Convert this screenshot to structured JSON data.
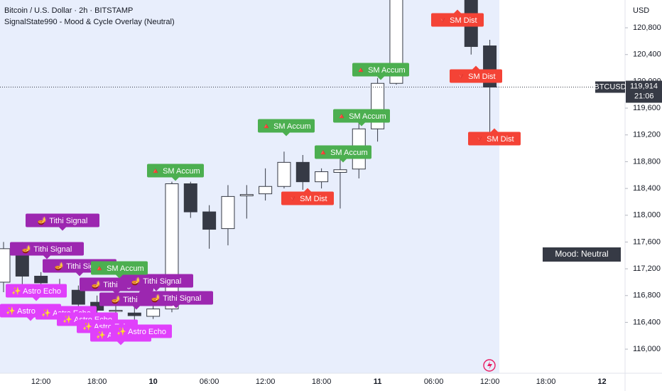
{
  "chart_data": {
    "type": "candlestick",
    "title": "Bitcoin / U.S. Dollar · 2h · BITSTAMP",
    "subtitle": "SignalState990 - Mood & Cycle Overlay (Neutral)",
    "currency": "USD",
    "symbol": "BTCUSD",
    "last_price": {
      "value": 119914,
      "label": "119,914"
    },
    "countdown": "21:06",
    "mood": "Mood: Neutral",
    "categories": [
      null,
      null,
      "12:00",
      null,
      null,
      "18:00",
      null,
      null,
      "10",
      null,
      null,
      "06:00",
      null,
      null,
      "12:00",
      null,
      null,
      "18:00",
      null,
      null,
      "11",
      null,
      null,
      "06:00",
      null,
      null,
      "12:00",
      null,
      null,
      "18:00",
      null,
      null,
      "12"
    ],
    "open": [
      117000,
      117520,
      117090,
      116950,
      116880,
      116700,
      116570,
      116540,
      116490,
      116600,
      118470,
      118050,
      117800,
      118290,
      118320,
      118430,
      118790,
      118500,
      118640,
      118690,
      119290,
      119970,
      null,
      null,
      null,
      121250,
      120530,
      null,
      null,
      null,
      null,
      null,
      null
    ],
    "high": [
      117600,
      117600,
      117150,
      117050,
      116950,
      116800,
      116700,
      116650,
      116700,
      118500,
      118500,
      118150,
      118450,
      118450,
      118700,
      118950,
      118900,
      118700,
      118850,
      119400,
      120050,
      121250,
      null,
      null,
      null,
      121300,
      120620,
      null,
      null,
      null,
      null,
      null,
      null
    ],
    "low": [
      116850,
      116900,
      116900,
      116800,
      116550,
      116500,
      116450,
      116400,
      116450,
      116550,
      117960,
      117500,
      117550,
      117950,
      118220,
      118400,
      118380,
      118400,
      118100,
      118550,
      119100,
      119950,
      null,
      null,
      null,
      120400,
      119220,
      null,
      null,
      null,
      null,
      null,
      null
    ],
    "close": [
      117500,
      117090,
      116990,
      116930,
      116670,
      116580,
      116580,
      116500,
      116600,
      118470,
      118050,
      117790,
      118280,
      118310,
      118430,
      118790,
      118500,
      118650,
      118680,
      119290,
      119970,
      121250,
      null,
      null,
      null,
      120520,
      119914,
      null,
      null,
      null,
      null,
      null,
      null
    ],
    "up_color": "#ffffff",
    "down_color": "#363a45",
    "border_color": "#363a45",
    "ylim": [
      115640,
      121215
    ],
    "yticks": [
      {
        "value": 116000,
        "label": "116,000"
      },
      {
        "value": 116400,
        "label": "116,400"
      },
      {
        "value": 116800,
        "label": "116,800"
      },
      {
        "value": 117200,
        "label": "117,200"
      },
      {
        "value": 117600,
        "label": "117,600"
      },
      {
        "value": 118000,
        "label": "118,000"
      },
      {
        "value": 118400,
        "label": "118,400"
      },
      {
        "value": 118800,
        "label": "118,800"
      },
      {
        "value": 119200,
        "label": "119,200"
      },
      {
        "value": 119600,
        "label": "119,600"
      },
      {
        "value": 120000,
        "label": "120,000"
      },
      {
        "value": 120400,
        "label": "120,400"
      },
      {
        "value": 120800,
        "label": "120,800"
      }
    ],
    "annotations": [
      {
        "text": "🪔 Tithi Signal",
        "color": "#9c27b0"
      },
      {
        "text": "🪔 Tithi Signal",
        "color": "#9c27b0"
      },
      {
        "text": "🪔 Tithi Signal",
        "color": "#9c27b0"
      },
      {
        "text": "🪔 Tithi Signal",
        "color": "#9c27b0"
      },
      {
        "text": "🪔 Tithi Signal",
        "color": "#9c27b0"
      },
      {
        "text": "🪔 Tithi Signal",
        "color": "#9c27b0"
      },
      {
        "text": "🪔 Tithi Signal",
        "color": "#9c27b0"
      },
      {
        "text": "✨ Astro Echo",
        "color": "#e040fb"
      },
      {
        "text": "✨ Astro Echo",
        "color": "#e040fb"
      },
      {
        "text": "✨ Astro Echo",
        "color": "#e040fb"
      },
      {
        "text": "✨ Astro Echo",
        "color": "#e040fb"
      },
      {
        "text": "✨ Astro Echo",
        "color": "#e040fb"
      },
      {
        "text": "✨ Astro Echo",
        "color": "#e040fb"
      },
      {
        "text": "✨ Astro Echo",
        "color": "#e040fb"
      },
      {
        "text": "🔺 SM Accum",
        "color": "#4caf50"
      },
      {
        "text": "🔺 SM Accum",
        "color": "#4caf50"
      },
      {
        "text": "🔺 SM Accum",
        "color": "#4caf50"
      },
      {
        "text": "🔺 SM Accum",
        "color": "#4caf50"
      },
      {
        "text": "🔺 SM Accum",
        "color": "#4caf50"
      },
      {
        "text": "🔺 SM Accum",
        "color": "#4caf50"
      },
      {
        "text": "🔻 SM Dist",
        "color": "#f44336"
      },
      {
        "text": "🔻 SM Dist",
        "color": "#f44336"
      },
      {
        "text": "🔻 SM Dist",
        "color": "#f44336"
      },
      {
        "text": "🔻 SM Dist",
        "color": "#f44336"
      }
    ]
  }
}
